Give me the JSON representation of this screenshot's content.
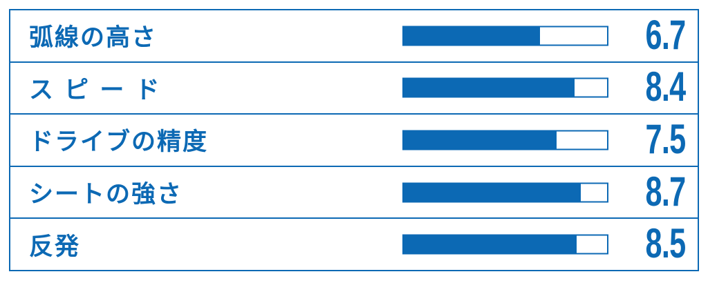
{
  "accent_color": "#0c69b4",
  "chart_data": {
    "type": "bar",
    "orientation": "horizontal",
    "categories": [
      "弧線の高さ",
      "ス ピ ー ド",
      "ドライブの精度",
      "シートの強さ",
      "反発"
    ],
    "values": [
      6.7,
      8.4,
      7.5,
      8.7,
      8.5
    ],
    "value_labels": [
      "6.7",
      "8.4",
      "7.5",
      "8.7",
      "8.5"
    ],
    "scale_min": 0,
    "scale_max": 10,
    "title": "",
    "xlabel": "",
    "ylabel": "",
    "legend": "none",
    "grid": "none",
    "bar_fill_color": "#0c69b4",
    "bar_track_color": "#ffffff"
  },
  "rows": [
    {
      "label": "弧線の高さ",
      "value": "6.7"
    },
    {
      "label": "ス ピ ー ド",
      "value": "8.4"
    },
    {
      "label": "ドライブの精度",
      "value": "7.5"
    },
    {
      "label": "シートの強さ",
      "value": "8.7"
    },
    {
      "label": "反発",
      "value": "8.5"
    }
  ]
}
